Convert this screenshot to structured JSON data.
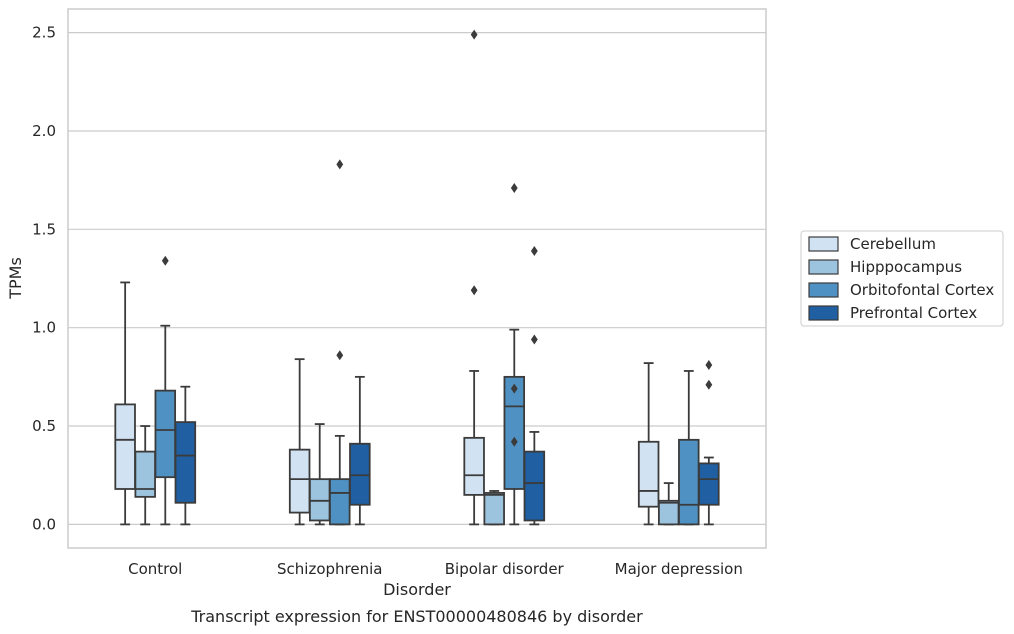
{
  "chart_data": {
    "type": "box",
    "title": "",
    "caption": "Transcript expression for ENST00000480846 by disorder",
    "xlabel": "Disorder",
    "ylabel": "TPMs",
    "ylim": [
      -0.12,
      2.62
    ],
    "yticks": [
      0.0,
      0.5,
      1.0,
      1.5,
      2.0,
      2.5
    ],
    "ytick_labels": [
      "0.0",
      "0.5",
      "1.0",
      "1.5",
      "2.0",
      "2.5"
    ],
    "grid": "horizontal",
    "legend_position": "right",
    "categories": [
      "Control",
      "Schizophrenia",
      "Bipolar disorder",
      "Major depression"
    ],
    "series": [
      {
        "name": "Cerebellum",
        "color": "#d1e2f2",
        "boxes": [
          {
            "whislo": 0.0,
            "q1": 0.18,
            "med": 0.43,
            "q3": 0.61,
            "whishi": 1.23,
            "fliers": []
          },
          {
            "whislo": 0.0,
            "q1": 0.06,
            "med": 0.23,
            "q3": 0.38,
            "whishi": 0.84,
            "fliers": []
          },
          {
            "whislo": 0.0,
            "q1": 0.15,
            "med": 0.25,
            "q3": 0.44,
            "whishi": 0.78,
            "fliers": [
              1.19,
              2.49
            ]
          },
          {
            "whislo": 0.0,
            "q1": 0.09,
            "med": 0.17,
            "q3": 0.42,
            "whishi": 0.82,
            "fliers": []
          }
        ]
      },
      {
        "name": "Hipppocampus",
        "color": "#9dc4df",
        "boxes": [
          {
            "whislo": 0.0,
            "q1": 0.14,
            "med": 0.18,
            "q3": 0.37,
            "whishi": 0.5,
            "fliers": []
          },
          {
            "whislo": 0.0,
            "q1": 0.02,
            "med": 0.12,
            "q3": 0.23,
            "whishi": 0.51,
            "fliers": []
          },
          {
            "whislo": 0.0,
            "q1": 0.0,
            "med": 0.15,
            "q3": 0.16,
            "whishi": 0.17,
            "fliers": []
          },
          {
            "whislo": 0.0,
            "q1": 0.0,
            "med": 0.11,
            "q3": 0.12,
            "whishi": 0.21,
            "fliers": []
          }
        ]
      },
      {
        "name": "Orbitofontal Cortex",
        "color": "#4f91c3",
        "boxes": [
          {
            "whislo": 0.0,
            "q1": 0.24,
            "med": 0.48,
            "q3": 0.68,
            "whishi": 1.01,
            "fliers": [
              1.34
            ]
          },
          {
            "whislo": 0.0,
            "q1": 0.0,
            "med": 0.16,
            "q3": 0.23,
            "whishi": 0.45,
            "fliers": [
              0.86,
              1.83
            ]
          },
          {
            "whislo": 0.0,
            "q1": 0.18,
            "med": 0.6,
            "q3": 0.75,
            "whishi": 0.99,
            "fliers": [
              0.42,
              0.69,
              1.71
            ]
          },
          {
            "whislo": 0.0,
            "q1": 0.0,
            "med": 0.1,
            "q3": 0.43,
            "whishi": 0.78,
            "fliers": []
          }
        ]
      },
      {
        "name": "Prefrontal Cortex",
        "color": "#1f5fa2",
        "boxes": [
          {
            "whislo": 0.0,
            "q1": 0.11,
            "med": 0.35,
            "q3": 0.52,
            "whishi": 0.7,
            "fliers": []
          },
          {
            "whislo": 0.0,
            "q1": 0.1,
            "med": 0.25,
            "q3": 0.41,
            "whishi": 0.75,
            "fliers": []
          },
          {
            "whislo": 0.0,
            "q1": 0.02,
            "med": 0.21,
            "q3": 0.37,
            "whishi": 0.47,
            "fliers": [
              0.94,
              1.39
            ]
          },
          {
            "whislo": 0.0,
            "q1": 0.1,
            "med": 0.23,
            "q3": 0.31,
            "whishi": 0.34,
            "fliers": [
              0.71,
              0.81
            ]
          }
        ]
      }
    ]
  }
}
